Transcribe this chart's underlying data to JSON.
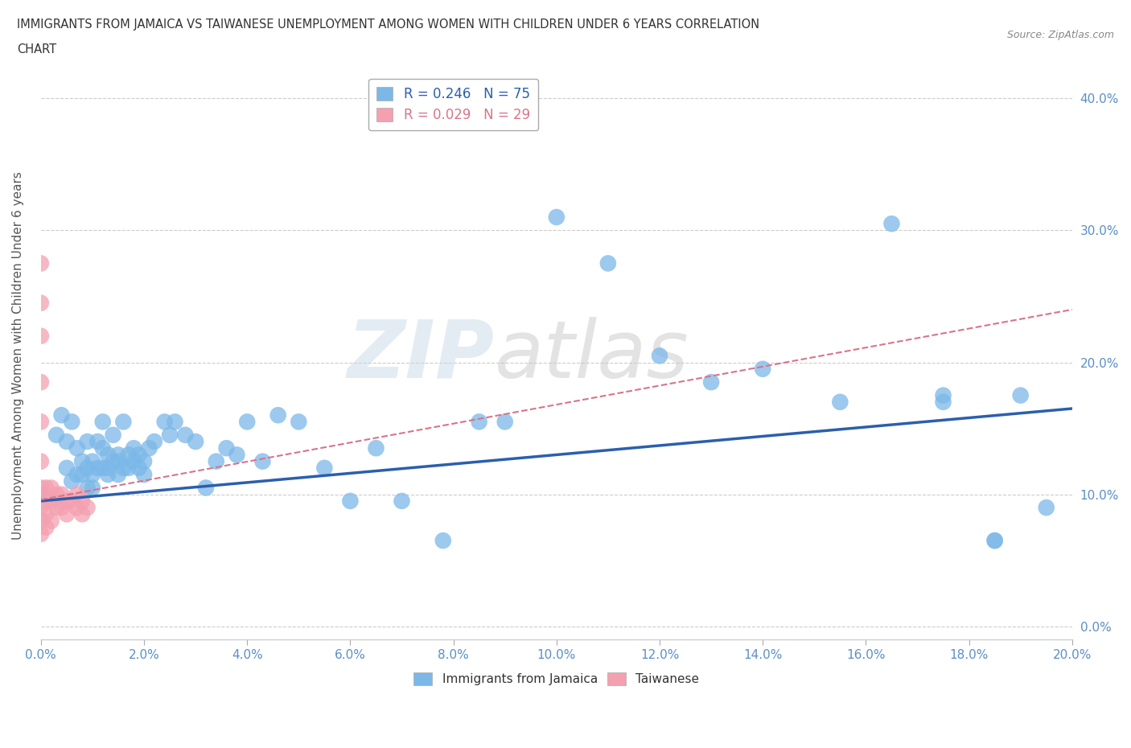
{
  "title_line1": "IMMIGRANTS FROM JAMAICA VS TAIWANESE UNEMPLOYMENT AMONG WOMEN WITH CHILDREN UNDER 6 YEARS CORRELATION",
  "title_line2": "CHART",
  "source": "Source: ZipAtlas.com",
  "ylabel": "Unemployment Among Women with Children Under 6 years",
  "xlim": [
    0,
    0.2
  ],
  "ylim": [
    -0.01,
    0.42
  ],
  "legend_r1": "R = 0.246",
  "legend_n1": "N = 75",
  "legend_r2": "R = 0.029",
  "legend_n2": "N = 29",
  "color_jamaica": "#7bb8e8",
  "color_taiwanese": "#f4a0b0",
  "color_jamaica_line": "#2b5fad",
  "color_taiwanese_line": "#d9748a",
  "watermark_zip": "ZIP",
  "watermark_atlas": "atlas",
  "jamaica_x": [
    0.0,
    0.003,
    0.004,
    0.005,
    0.005,
    0.006,
    0.006,
    0.007,
    0.007,
    0.008,
    0.008,
    0.009,
    0.009,
    0.009,
    0.01,
    0.01,
    0.01,
    0.011,
    0.011,
    0.012,
    0.012,
    0.012,
    0.013,
    0.013,
    0.013,
    0.014,
    0.014,
    0.015,
    0.015,
    0.015,
    0.016,
    0.016,
    0.017,
    0.017,
    0.018,
    0.018,
    0.019,
    0.019,
    0.02,
    0.02,
    0.021,
    0.022,
    0.024,
    0.025,
    0.026,
    0.028,
    0.03,
    0.032,
    0.034,
    0.036,
    0.038,
    0.04,
    0.043,
    0.046,
    0.05,
    0.055,
    0.06,
    0.065,
    0.07,
    0.078,
    0.085,
    0.09,
    0.1,
    0.11,
    0.12,
    0.13,
    0.14,
    0.155,
    0.165,
    0.175,
    0.185,
    0.19,
    0.195,
    0.185,
    0.175
  ],
  "jamaica_y": [
    0.1,
    0.145,
    0.16,
    0.12,
    0.14,
    0.11,
    0.155,
    0.115,
    0.135,
    0.115,
    0.125,
    0.105,
    0.12,
    0.14,
    0.115,
    0.105,
    0.125,
    0.14,
    0.12,
    0.155,
    0.12,
    0.135,
    0.115,
    0.13,
    0.12,
    0.145,
    0.125,
    0.13,
    0.115,
    0.125,
    0.155,
    0.12,
    0.13,
    0.12,
    0.135,
    0.125,
    0.13,
    0.12,
    0.125,
    0.115,
    0.135,
    0.14,
    0.155,
    0.145,
    0.155,
    0.145,
    0.14,
    0.105,
    0.125,
    0.135,
    0.13,
    0.155,
    0.125,
    0.16,
    0.155,
    0.12,
    0.095,
    0.135,
    0.095,
    0.065,
    0.155,
    0.155,
    0.31,
    0.275,
    0.205,
    0.185,
    0.195,
    0.17,
    0.305,
    0.175,
    0.065,
    0.175,
    0.09,
    0.065,
    0.17
  ],
  "taiwanese_x": [
    0.0,
    0.0,
    0.0,
    0.0,
    0.0,
    0.0,
    0.0,
    0.0,
    0.0,
    0.0,
    0.001,
    0.001,
    0.001,
    0.001,
    0.002,
    0.002,
    0.002,
    0.003,
    0.003,
    0.004,
    0.004,
    0.005,
    0.005,
    0.006,
    0.007,
    0.007,
    0.008,
    0.008,
    0.009
  ],
  "taiwanese_y": [
    0.275,
    0.245,
    0.22,
    0.185,
    0.155,
    0.125,
    0.105,
    0.09,
    0.08,
    0.07,
    0.105,
    0.095,
    0.085,
    0.075,
    0.105,
    0.095,
    0.08,
    0.1,
    0.09,
    0.1,
    0.09,
    0.095,
    0.085,
    0.095,
    0.1,
    0.09,
    0.095,
    0.085,
    0.09
  ],
  "jamaica_trendline_x": [
    0.0,
    0.2
  ],
  "jamaica_trendline_y": [
    0.095,
    0.165
  ],
  "taiwanese_trendline_x": [
    0.0,
    0.2
  ],
  "taiwanese_trendline_y": [
    0.096,
    0.24
  ]
}
